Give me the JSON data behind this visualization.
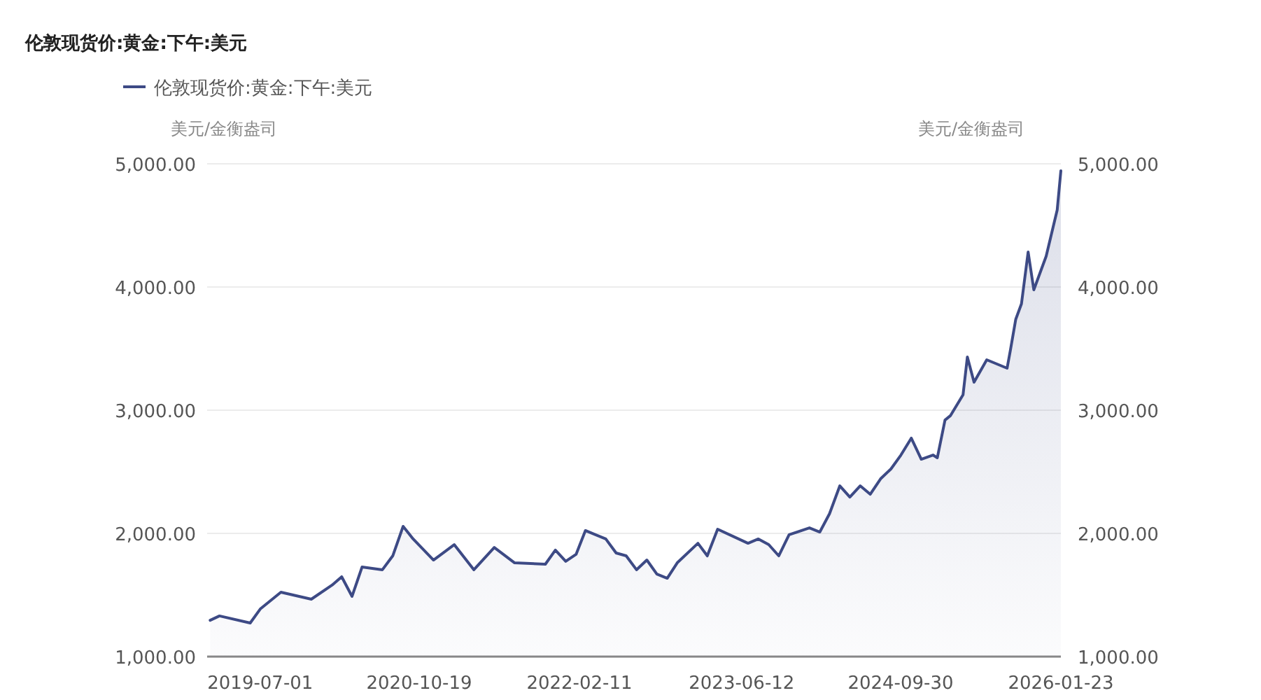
{
  "chart_data": {
    "type": "area",
    "title": "伦敦现货价:黄金:下午:美元",
    "ylabel": "美元/金衡盎司",
    "y2label": "美元/金衡盎司",
    "xlim": [
      "2019-01-23",
      "2026-01-23"
    ],
    "xticks": [
      "2019-07-01",
      "2020-10-19",
      "2022-02-11",
      "2023-06-12",
      "2024-09-30",
      "2026-01-23"
    ],
    "ylim": [
      1000,
      5000
    ],
    "yticks": [
      {
        "value": 1000,
        "label": "1,000.00"
      },
      {
        "value": 2000,
        "label": "2,000.00"
      },
      {
        "value": 3000,
        "label": "3,000.00"
      },
      {
        "value": 4000,
        "label": "4,000.00"
      },
      {
        "value": 5000,
        "label": "5,000.00"
      }
    ],
    "y2lim": [
      1000,
      5000
    ],
    "y2ticks": [
      {
        "value": 1000,
        "label": "1,000.00"
      },
      {
        "value": 2000,
        "label": "2,000.00"
      },
      {
        "value": 3000,
        "label": "3,000.00"
      },
      {
        "value": 4000,
        "label": "4,000.00"
      },
      {
        "value": 5000,
        "label": "5,000.00"
      }
    ],
    "grid": "y",
    "legend": "top left",
    "marker": "none",
    "line_style": "solid",
    "series": [
      {
        "name": "伦敦现货价:黄金:下午:美元",
        "color": "#3d4a85",
        "x": [
          "2019-02",
          "2019-03",
          "2019-06",
          "2019-07",
          "2019-09",
          "2019-12",
          "2020-02",
          "2020-03",
          "2020-04",
          "2020-05",
          "2020-07",
          "2020-08",
          "2020-09",
          "2020-10",
          "2020-12",
          "2021-02",
          "2021-04",
          "2021-06",
          "2021-08",
          "2021-11",
          "2021-12",
          "2022-01",
          "2022-02",
          "2022-03",
          "2022-05",
          "2022-06",
          "2022-07",
          "2022-08",
          "2022-09",
          "2022-10",
          "2022-11",
          "2022-12",
          "2023-02",
          "2023-03",
          "2023-04",
          "2023-07",
          "2023-08",
          "2023-09",
          "2023-10",
          "2023-11",
          "2024-01",
          "2024-02",
          "2024-03",
          "2024-04",
          "2024-05",
          "2024-06",
          "2024-07",
          "2024-08",
          "2024-09",
          "2024-10",
          "2024-11",
          "2024-12",
          "2025-01-05",
          "2025-01-18",
          "2025-02-10",
          "2025-02-26",
          "2025-04-05",
          "2025-04-18",
          "2025-05-08",
          "2025-06-15",
          "2025-08-15",
          "2025-08-25",
          "2025-09-10",
          "2025-09-27",
          "2025-10-17",
          "2025-11-03",
          "2025-12-10",
          "2025-12-31",
          "2026-01-12",
          "2026-01-23"
        ],
        "values": [
          1295,
          1330,
          1273,
          1386,
          1523,
          1466,
          1580,
          1648,
          1489,
          1727,
          1705,
          1818,
          2057,
          1955,
          1784,
          1909,
          1705,
          1886,
          1761,
          1750,
          1864,
          1773,
          1830,
          2023,
          1955,
          1841,
          1818,
          1705,
          1784,
          1670,
          1636,
          1761,
          1920,
          1818,
          2034,
          1920,
          1955,
          1909,
          1818,
          1989,
          2045,
          2011,
          2159,
          2386,
          2295,
          2386,
          2318,
          2443,
          2523,
          2636,
          2773,
          2602,
          2636,
          2614,
          2920,
          2955,
          3125,
          3432,
          3227,
          3409,
          3341,
          3489,
          3739,
          3864,
          4284,
          3977,
          4250,
          4489,
          4625,
          4943
        ]
      }
    ]
  }
}
